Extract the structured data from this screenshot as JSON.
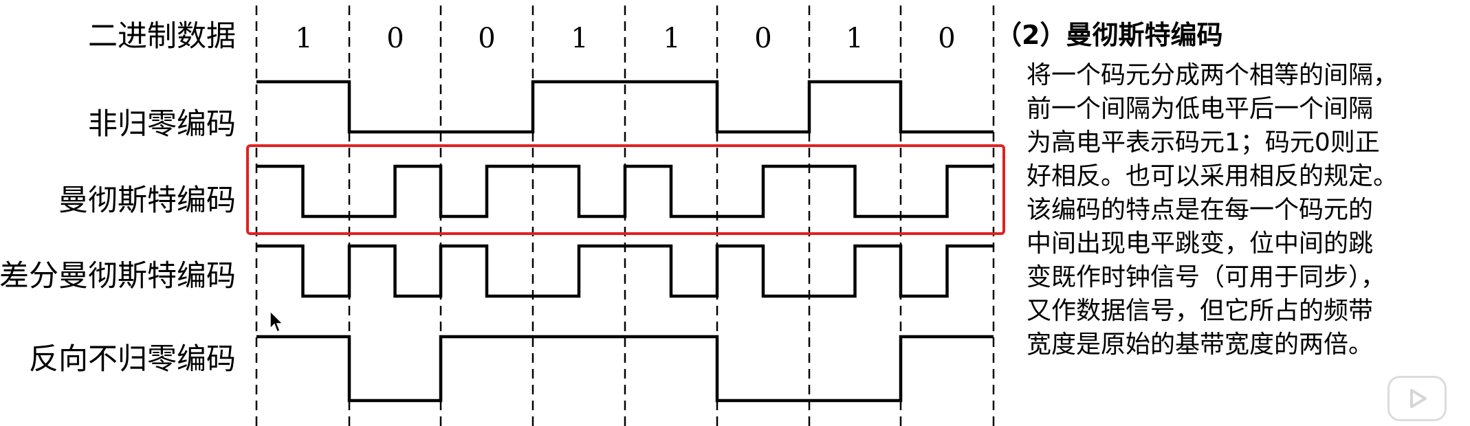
{
  "bits": [
    "1",
    "0",
    "0",
    "1",
    "1",
    "0",
    "1",
    "0"
  ],
  "rows": [
    {
      "id": "nrz",
      "label": "非归零编码"
    },
    {
      "id": "manchester",
      "label": "曼彻斯特编码"
    },
    {
      "id": "diff_manchester",
      "label": "差分曼彻斯特编码"
    },
    {
      "id": "nrzi",
      "label": "反向不归零编码"
    }
  ],
  "data_row_label": "二进制数据",
  "highlight_color": "#e02020",
  "panel": {
    "heading": "（2）曼彻斯特编码",
    "body": "将一个码元分成两个相等的间隔，\n前一个间隔为低电平后一个间隔\n为高电平表示码元1；码元0则正\n好相反。也可以采用相反的规定。\n该编码的特点是在每一个码元的\n中间出现电平跳变，位中间的跳\n变既作时钟信号（可用于同步），\n又作数据信号，但它所占的频带\n宽度是原始的基带宽度的两倍。"
  },
  "waveforms": {
    "nrz": [
      "H",
      "H",
      "L",
      "L",
      "L",
      "L",
      "H",
      "H",
      "H",
      "H",
      "L",
      "L",
      "H",
      "H",
      "L",
      "L"
    ],
    "manchester": [
      "H",
      "L",
      "L",
      "H",
      "L",
      "H",
      "H",
      "L",
      "H",
      "L",
      "L",
      "H",
      "H",
      "L",
      "L",
      "H"
    ],
    "diff_manchester": [
      "H",
      "L",
      "H",
      "L",
      "H",
      "L",
      "L",
      "H",
      "H",
      "L",
      "H",
      "L",
      "L",
      "H",
      "L",
      "H"
    ],
    "nrzi": [
      "H",
      "H",
      "L",
      "L",
      "H",
      "H",
      "H",
      "H",
      "H",
      "H",
      "L",
      "L",
      "L",
      "L",
      "H",
      "H"
    ]
  },
  "icons": {
    "cursor": "mouse-pointer-icon",
    "play": "play-button-icon"
  }
}
